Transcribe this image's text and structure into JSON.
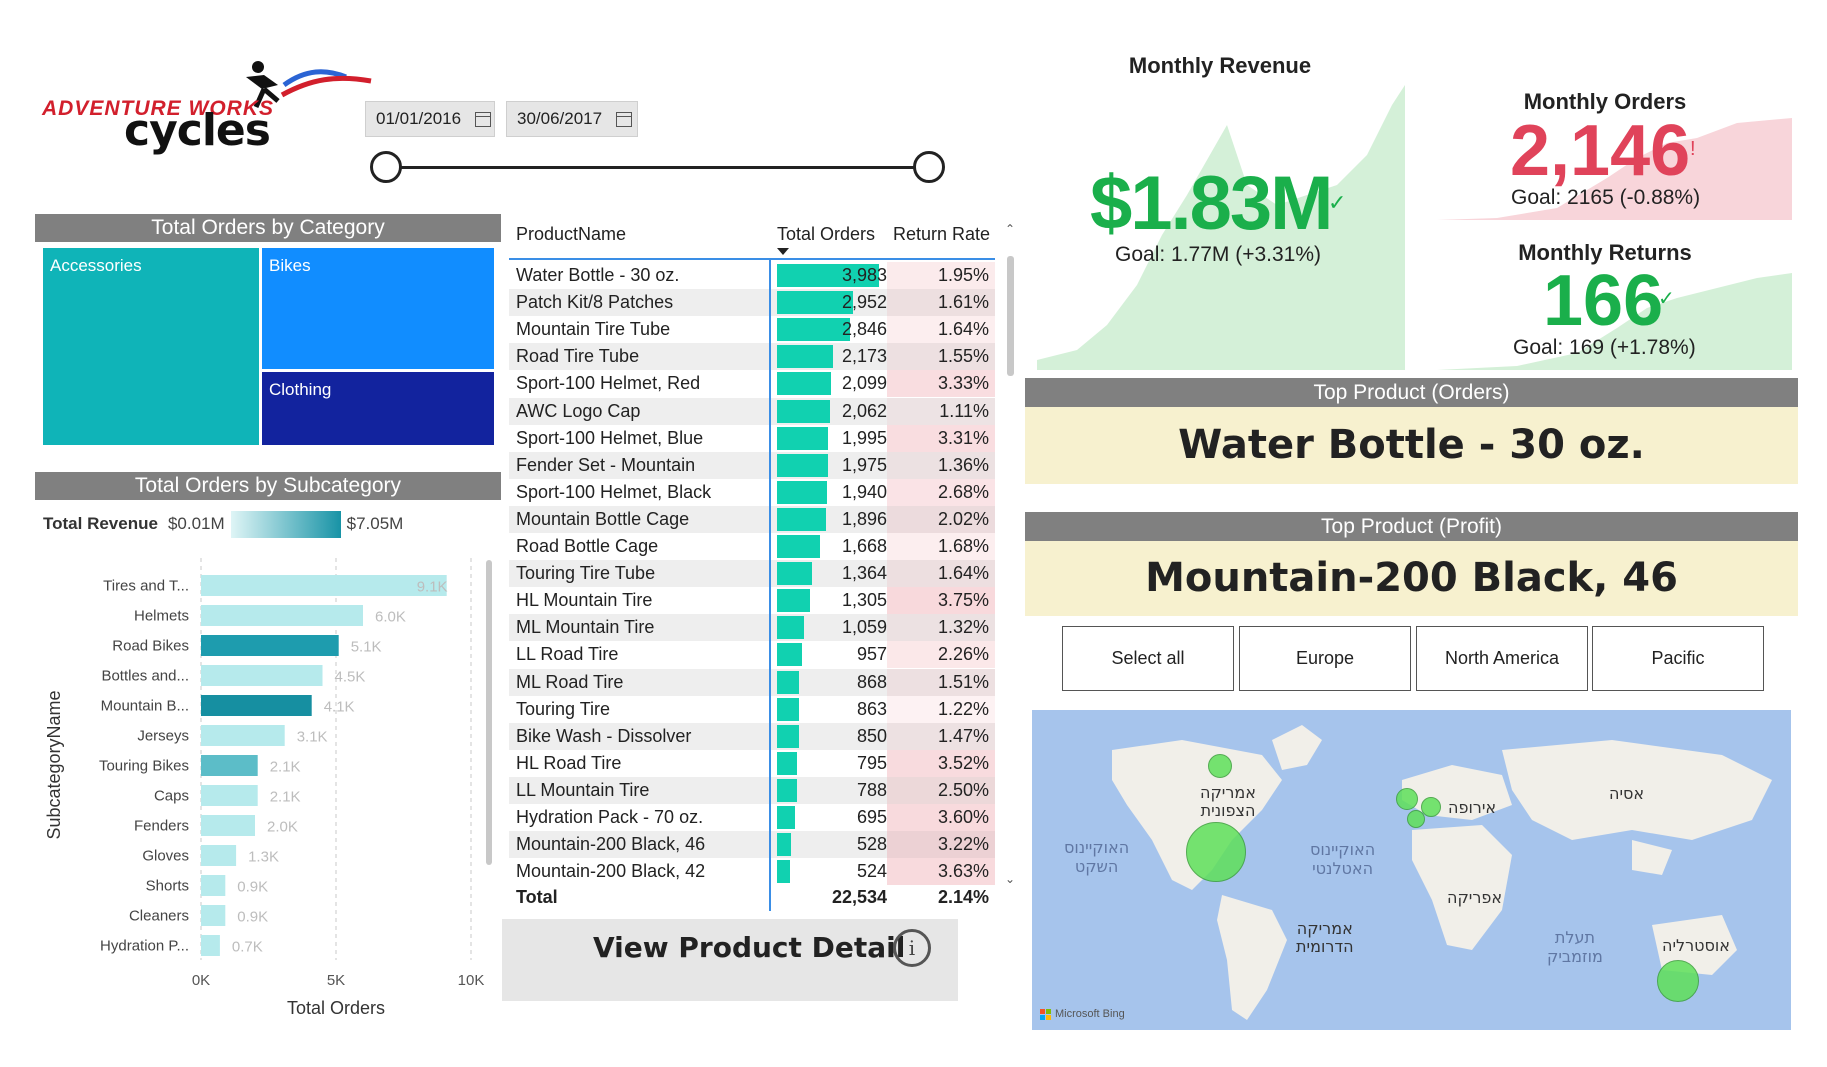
{
  "logo": {
    "line1": "ADVENTURE WORKS",
    "line2": "cycles"
  },
  "date_slicer": {
    "start": "01/01/2016",
    "end": "30/06/2017"
  },
  "category_chart": {
    "title": "Total Orders by Category",
    "items": [
      {
        "label": "Accessories",
        "color": "#0fb4b8"
      },
      {
        "label": "Bikes",
        "color": "#118dff"
      },
      {
        "label": "Clothing",
        "color": "#12239e"
      }
    ]
  },
  "subcategory_chart": {
    "title": "Total Orders by Subcategory",
    "legend": {
      "label": "Total Revenue",
      "min": "$0.01M",
      "max": "$7.05M"
    },
    "ylabel": "SubcategoryName",
    "xlabel": "Total Orders",
    "x_ticks": [
      "0K",
      "5K",
      "10K"
    ]
  },
  "chart_data": {
    "type": "bar",
    "orientation": "horizontal",
    "title": "Total Orders by Subcategory",
    "xlabel": "Total Orders",
    "ylabel": "SubcategoryName",
    "xlim": [
      0,
      10000
    ],
    "categories": [
      "Tires and T...",
      "Helmets",
      "Road Bikes",
      "Bottles and...",
      "Mountain B...",
      "Jerseys",
      "Touring Bikes",
      "Caps",
      "Fenders",
      "Gloves",
      "Shorts",
      "Cleaners",
      "Hydration P..."
    ],
    "values": [
      9100,
      6000,
      5100,
      4500,
      4100,
      3100,
      2100,
      2100,
      2000,
      1300,
      900,
      900,
      700
    ],
    "data_labels": [
      "9.1K",
      "6.0K",
      "5.1K",
      "4.5K",
      "4.1K",
      "3.1K",
      "2.1K",
      "2.1K",
      "2.0K",
      "1.3K",
      "0.9K",
      "0.9K",
      "0.7K"
    ],
    "colors": [
      "#b6eaec",
      "#b6eaec",
      "#1e9cae",
      "#b6eaec",
      "#168fa1",
      "#b6eaec",
      "#5cbdc8",
      "#b6eaec",
      "#b6eaec",
      "#b6eaec",
      "#b6eaec",
      "#b6eaec",
      "#b6eaec"
    ]
  },
  "product_table": {
    "headers": {
      "name": "ProductName",
      "orders": "Total Orders",
      "rr": "Return Rate"
    },
    "rows": [
      {
        "name": "Water Bottle - 30 oz.",
        "orders": "3,983",
        "value": 3983,
        "rr": "1.95%"
      },
      {
        "name": "Patch Kit/8 Patches",
        "orders": "2,952",
        "value": 2952,
        "rr": "1.61%"
      },
      {
        "name": "Mountain Tire Tube",
        "orders": "2,846",
        "value": 2846,
        "rr": "1.64%"
      },
      {
        "name": "Road Tire Tube",
        "orders": "2,173",
        "value": 2173,
        "rr": "1.55%"
      },
      {
        "name": "Sport-100 Helmet, Red",
        "orders": "2,099",
        "value": 2099,
        "rr": "3.33%"
      },
      {
        "name": "AWC Logo Cap",
        "orders": "2,062",
        "value": 2062,
        "rr": "1.11%"
      },
      {
        "name": "Sport-100 Helmet, Blue",
        "orders": "1,995",
        "value": 1995,
        "rr": "3.31%"
      },
      {
        "name": "Fender Set - Mountain",
        "orders": "1,975",
        "value": 1975,
        "rr": "1.36%"
      },
      {
        "name": "Sport-100 Helmet, Black",
        "orders": "1,940",
        "value": 1940,
        "rr": "2.68%"
      },
      {
        "name": "Mountain Bottle Cage",
        "orders": "1,896",
        "value": 1896,
        "rr": "2.02%"
      },
      {
        "name": "Road Bottle Cage",
        "orders": "1,668",
        "value": 1668,
        "rr": "1.68%"
      },
      {
        "name": "Touring Tire Tube",
        "orders": "1,364",
        "value": 1364,
        "rr": "1.64%"
      },
      {
        "name": "HL Mountain Tire",
        "orders": "1,305",
        "value": 1305,
        "rr": "3.75%"
      },
      {
        "name": "ML Mountain Tire",
        "orders": "1,059",
        "value": 1059,
        "rr": "1.32%"
      },
      {
        "name": "LL Road Tire",
        "orders": "957",
        "value": 957,
        "rr": "2.26%"
      },
      {
        "name": "ML Road Tire",
        "orders": "868",
        "value": 868,
        "rr": "1.51%"
      },
      {
        "name": "Touring Tire",
        "orders": "863",
        "value": 863,
        "rr": "1.22%"
      },
      {
        "name": "Bike Wash - Dissolver",
        "orders": "850",
        "value": 850,
        "rr": "1.47%"
      },
      {
        "name": "HL Road Tire",
        "orders": "795",
        "value": 795,
        "rr": "3.52%"
      },
      {
        "name": "LL Mountain Tire",
        "orders": "788",
        "value": 788,
        "rr": "2.50%"
      },
      {
        "name": "Hydration Pack - 70 oz.",
        "orders": "695",
        "value": 695,
        "rr": "3.60%"
      },
      {
        "name": "Mountain-200 Black, 46",
        "orders": "528",
        "value": 528,
        "rr": "3.22%"
      },
      {
        "name": "Mountain-200 Black, 42",
        "orders": "524",
        "value": 524,
        "rr": "3.63%"
      }
    ],
    "total": {
      "label": "Total",
      "orders": "22,534",
      "rr": "2.14%"
    }
  },
  "view_detail": {
    "label": "View Product Detail",
    "icon_glyph": "i"
  },
  "kpi_revenue": {
    "title": "Monthly Revenue",
    "value": "$1.83M",
    "goal": "Goal: 1.77M (+3.31%)",
    "status": "✓",
    "color": "#1aaf4b"
  },
  "kpi_orders": {
    "title": "Monthly Orders",
    "value": "2,146",
    "goal": "Goal: 2165 (-0.88%)",
    "status": "!",
    "color": "#e0435a"
  },
  "kpi_returns": {
    "title": "Monthly Returns",
    "value": "166",
    "goal": "Goal: 169 (+1.78%)",
    "status": "✓",
    "color": "#1aaf4b"
  },
  "top_orders": {
    "title": "Top Product (Orders)",
    "value": "Water Bottle - 30 oz."
  },
  "top_profit": {
    "title": "Top Product (Profit)",
    "value": "Mountain-200 Black, 46"
  },
  "region_buttons": [
    "Select all",
    "Europe",
    "North America",
    "Pacific"
  ],
  "map": {
    "labels": {
      "north_america": [
        "אמריקה",
        "הצפונית"
      ],
      "europe": "אירופה",
      "asia": "אסיה",
      "africa": "אפריקה",
      "south_america": [
        "אמריקה",
        "הדרומית"
      ],
      "australia": "אוסטרליה",
      "pacific_ocean": [
        "האוקיינוס",
        "השקט"
      ],
      "atlantic_ocean": [
        "האוקיינוס",
        "האטלנטי"
      ],
      "mozambique": [
        "תעלת",
        "מוזמביק"
      ]
    },
    "attribution": "Microsoft Bing",
    "bubble_color": "#5fe05a"
  }
}
